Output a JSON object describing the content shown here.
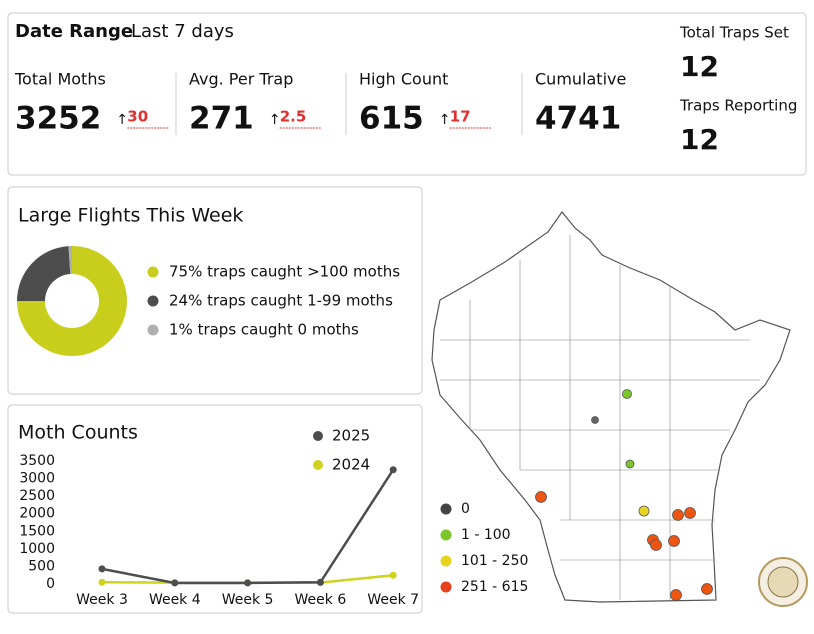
{
  "header": {
    "label": "Date Range",
    "range": "Last 7 days"
  },
  "kpis": [
    {
      "label": "Total Moths",
      "value": 3252,
      "change": 30
    },
    {
      "label": "Avg. Per Trap",
      "value": 271,
      "change": 2.5
    },
    {
      "label": "High Count",
      "value": 615,
      "change": 17
    },
    {
      "label": "Cumulative",
      "value": 4741
    }
  ],
  "traps": [
    {
      "label": "Total Traps Set",
      "value": 12
    },
    {
      "label": "Traps Reporting",
      "value": 12
    }
  ],
  "chart_data": [
    {
      "type": "pie",
      "title": "Large Flights This Week",
      "values": [
        75,
        24,
        1
      ],
      "value_labels": [
        "75% traps caught >100 moths",
        "24% traps caught 1-99 moths",
        "1% traps caught 0 moths"
      ],
      "colors": [
        "#c9cd1c",
        "#4d4d4d",
        "#b0b0b0"
      ]
    },
    {
      "type": "line",
      "title": "Moth Counts",
      "categories": [
        "Week 3",
        "Week 4",
        "Week 5",
        "Week 6",
        "Week 7"
      ],
      "series": [
        {
          "name": "2025",
          "color": "#4d4d4d",
          "values": [
            430,
            30,
            30,
            50,
            3252
          ]
        },
        {
          "name": "2024",
          "color": "#cfd21e",
          "values": [
            50,
            40,
            40,
            40,
            250
          ]
        }
      ],
      "ylim": [
        0,
        3500
      ],
      "yticks": [
        0,
        500,
        1000,
        1500,
        2000,
        2500,
        3000,
        3500
      ]
    }
  ],
  "map": {
    "legend": [
      {
        "label": "0",
        "color": "#444444"
      },
      {
        "label": "1 - 100",
        "color": "#7cc52a"
      },
      {
        "label": "101 - 250",
        "color": "#e6d421"
      },
      {
        "label": "251 - 615",
        "color": "#e8401a"
      }
    ]
  }
}
